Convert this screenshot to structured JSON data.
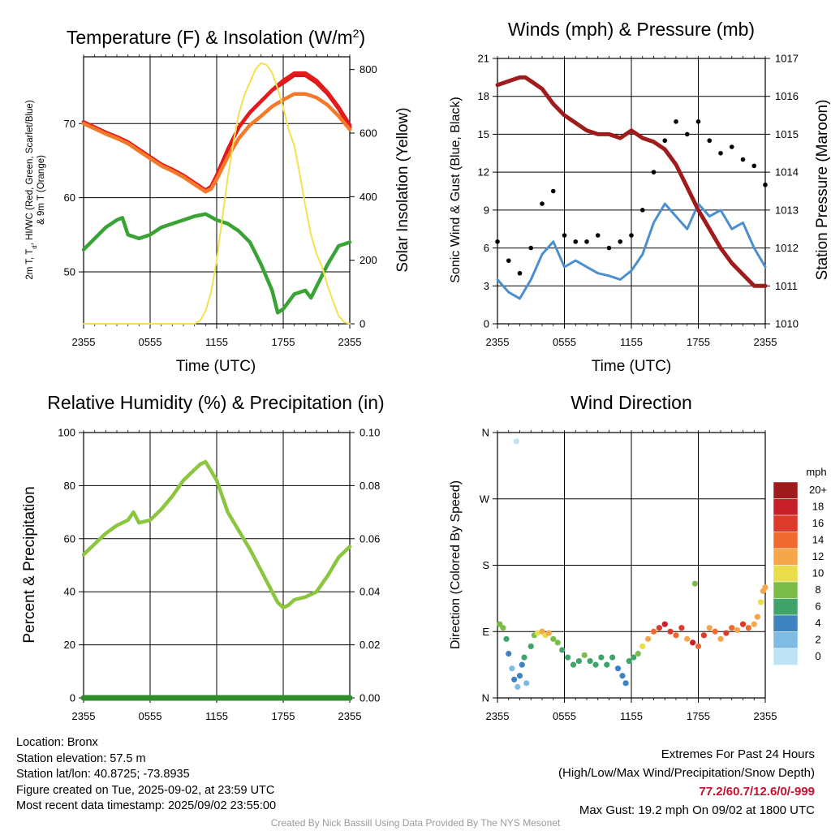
{
  "chart_data": [
    {
      "id": "temp",
      "type": "line",
      "title": "Temperature (F) & Insolation (W/m²)",
      "xlabel": "Time (UTC)",
      "ylabel": "2m T, Td, HI/WC (Red, Green, Scarlet/Blue) & 9m T (Orange)",
      "ylabel_right": "Solar Insolation (Yellow)",
      "x_ticks": [
        "2355",
        "0555",
        "1155",
        "1755",
        "2355"
      ],
      "y_ticks": [
        "50",
        "60",
        "70"
      ],
      "y_ticks_right": [
        "0",
        "200",
        "400",
        "600",
        "800"
      ],
      "ylim": [
        43,
        79
      ],
      "ylim_right": [
        0,
        840
      ],
      "xlim": [
        0,
        24
      ],
      "series": [
        {
          "name": "2m T",
          "color": "#d7191c",
          "axis": "left",
          "x": [
            0,
            1,
            2,
            3,
            4,
            5,
            6,
            7,
            8,
            9,
            10,
            11,
            11.5,
            12,
            13,
            14,
            15,
            16,
            17,
            18,
            19,
            20,
            21,
            22,
            23,
            24
          ],
          "y": [
            70.2,
            69.5,
            68.8,
            68.2,
            67.5,
            66.5,
            65.5,
            64.5,
            63.8,
            63.0,
            62.0,
            61.0,
            61.5,
            63.0,
            66.5,
            69.5,
            71.5,
            73.0,
            74.5,
            75.5,
            76.5,
            76.5,
            75.5,
            74.0,
            72.0,
            69.5
          ]
        },
        {
          "name": "HI/WC",
          "color": "#e41a1c",
          "axis": "left",
          "x": [
            0,
            1,
            2,
            3,
            4,
            5,
            6,
            7,
            8,
            9,
            10,
            11,
            11.5,
            12,
            13,
            14,
            15,
            16,
            17,
            18,
            19,
            20,
            21,
            22,
            23,
            24
          ],
          "y": [
            70.2,
            69.5,
            68.8,
            68.2,
            67.5,
            66.5,
            65.5,
            64.5,
            63.8,
            63.0,
            62.0,
            61.0,
            61.5,
            63.0,
            66.5,
            69.5,
            71.5,
            73.0,
            74.5,
            75.8,
            76.8,
            76.8,
            75.8,
            74.2,
            72.2,
            69.8
          ]
        },
        {
          "name": "9m T",
          "color": "#f47a2a",
          "axis": "left",
          "x": [
            0,
            1,
            2,
            3,
            4,
            5,
            6,
            7,
            8,
            9,
            10,
            11,
            11.5,
            12,
            13,
            14,
            15,
            16,
            17,
            18,
            19,
            20,
            21,
            22,
            23,
            24
          ],
          "y": [
            70.0,
            69.3,
            68.6,
            68.0,
            67.3,
            66.3,
            65.3,
            64.3,
            63.6,
            62.8,
            61.8,
            60.8,
            61.2,
            62.5,
            65.5,
            68.0,
            69.8,
            71.0,
            72.3,
            73.2,
            74.0,
            74.0,
            73.5,
            72.5,
            71.0,
            69.2
          ]
        },
        {
          "name": "Td",
          "color": "#3aa335",
          "axis": "left",
          "x": [
            0,
            1,
            2,
            3,
            3.5,
            4,
            5,
            6,
            7,
            8,
            9,
            10,
            11,
            12,
            13,
            14,
            15,
            16,
            17,
            17.5,
            18,
            18.5,
            19,
            20,
            20.5,
            21,
            22,
            23,
            24
          ],
          "y": [
            53.0,
            54.5,
            56.0,
            57.0,
            57.3,
            55.0,
            54.5,
            55.0,
            56.0,
            56.5,
            57.0,
            57.5,
            57.8,
            57.0,
            56.5,
            55.5,
            54.0,
            51.0,
            47.5,
            44.5,
            45.0,
            46.0,
            47.0,
            47.5,
            46.5,
            48.0,
            51.0,
            53.5,
            54.0
          ]
        },
        {
          "name": "Insolation",
          "color": "#f5e050",
          "axis": "right",
          "x": [
            0,
            10,
            10.5,
            11,
            11.5,
            12,
            12.5,
            13,
            13.5,
            14,
            14.5,
            15,
            15.5,
            16,
            16.5,
            17,
            17.5,
            18,
            18.5,
            19,
            19.5,
            20,
            20.5,
            21,
            21.5,
            22,
            22.5,
            23,
            23.5,
            24
          ],
          "y": [
            0,
            0,
            10,
            40,
            100,
            200,
            330,
            460,
            570,
            660,
            720,
            760,
            800,
            820,
            815,
            790,
            740,
            680,
            610,
            560,
            470,
            370,
            280,
            220,
            180,
            120,
            70,
            25,
            5,
            0
          ]
        }
      ]
    },
    {
      "id": "wind",
      "type": "line",
      "title": "Winds (mph) & Pressure (mb)",
      "xlabel": "Time (UTC)",
      "ylabel": "Sonic Wind & Gust (Blue, Black)",
      "ylabel_right": "Station Pressure (Maroon)",
      "x_ticks": [
        "2355",
        "0555",
        "1155",
        "1755",
        "2355"
      ],
      "y_ticks": [
        "0",
        "3",
        "6",
        "9",
        "12",
        "15",
        "18",
        "21"
      ],
      "y_ticks_right": [
        "1010",
        "1011",
        "1012",
        "1013",
        "1014",
        "1015",
        "1016",
        "1017"
      ],
      "ylim": [
        0,
        21
      ],
      "ylim_right": [
        1010,
        1017
      ],
      "xlim": [
        0,
        24
      ],
      "series": [
        {
          "name": "Sonic Wind",
          "color": "#4a90cf",
          "axis": "left",
          "x": [
            0,
            1,
            2,
            3,
            4,
            5,
            6,
            7,
            8,
            9,
            10,
            11,
            12,
            13,
            14,
            15,
            16,
            17,
            18,
            19,
            20,
            21,
            22,
            23,
            24
          ],
          "y": [
            3.5,
            2.5,
            2.0,
            3.5,
            5.5,
            6.5,
            4.5,
            5.0,
            4.5,
            4.0,
            3.8,
            3.5,
            4.2,
            5.5,
            8.0,
            9.5,
            8.5,
            7.5,
            9.5,
            8.5,
            9.0,
            7.5,
            8.0,
            6.0,
            4.5
          ]
        },
        {
          "name": "Gust",
          "color": "#000000",
          "axis": "left",
          "x": [
            0,
            1,
            2,
            3,
            4,
            5,
            6,
            7,
            8,
            9,
            10,
            11,
            12,
            13,
            14,
            15,
            16,
            17,
            18,
            19,
            20,
            21,
            22,
            23,
            24
          ],
          "y": [
            6.5,
            5.0,
            4.0,
            6.0,
            9.5,
            10.5,
            7.0,
            6.5,
            6.5,
            7.0,
            6.0,
            6.5,
            7.0,
            9.0,
            12.0,
            14.5,
            16.0,
            15.0,
            16.0,
            14.5,
            13.5,
            14.0,
            13.0,
            12.5,
            11.0
          ]
        },
        {
          "name": "Station Pressure",
          "color": "#a01c1c",
          "axis": "right",
          "x": [
            0,
            1,
            2,
            2.5,
            3,
            4,
            5,
            6,
            7,
            8,
            9,
            10,
            11,
            12,
            13,
            14,
            15,
            16,
            17,
            18,
            19,
            20,
            21,
            22,
            23,
            24
          ],
          "y": [
            1016.3,
            1016.4,
            1016.5,
            1016.5,
            1016.4,
            1016.2,
            1015.8,
            1015.5,
            1015.3,
            1015.1,
            1015.0,
            1015.0,
            1014.9,
            1015.1,
            1014.9,
            1014.8,
            1014.6,
            1014.2,
            1013.6,
            1013.0,
            1012.5,
            1012.0,
            1011.6,
            1011.3,
            1011.0,
            1011.0
          ]
        }
      ]
    },
    {
      "id": "rh",
      "type": "line",
      "title": "Relative Humidity (%) & Precipitation (in)",
      "xlabel": "",
      "ylabel": "Percent & Precipitation",
      "x_ticks": [
        "2355",
        "0555",
        "1155",
        "1755",
        "2355"
      ],
      "y_ticks": [
        "0",
        "20",
        "40",
        "60",
        "80",
        "100"
      ],
      "y_ticks_right": [
        "0.00",
        "0.02",
        "0.04",
        "0.06",
        "0.08",
        "0.10"
      ],
      "ylim": [
        0,
        100
      ],
      "ylim_right": [
        0,
        0.1
      ],
      "xlim": [
        0,
        24
      ],
      "series": [
        {
          "name": "Relative Humidity",
          "color": "#8cc63f",
          "axis": "left",
          "x": [
            0,
            1,
            2,
            3,
            4,
            4.5,
            5,
            6,
            7,
            8,
            9,
            10,
            10.5,
            11,
            12,
            13,
            14,
            15,
            16,
            17,
            17.5,
            18,
            18.5,
            19,
            20,
            21,
            22,
            23,
            24
          ],
          "y": [
            54,
            58,
            62,
            65,
            67,
            70,
            66,
            67,
            71,
            76,
            82,
            86,
            88,
            89,
            82,
            70,
            63,
            56,
            48,
            40,
            36,
            34,
            35,
            37,
            38,
            40,
            46,
            53,
            57
          ]
        },
        {
          "name": "Precipitation",
          "color": "#2e8b2e",
          "axis": "right",
          "x": [
            0,
            24
          ],
          "y": [
            0,
            0
          ]
        }
      ]
    },
    {
      "id": "wdir",
      "type": "scatter",
      "title": "Wind Direction",
      "xlabel": "",
      "ylabel": "Direction (Colored By Speed)",
      "x_ticks": [
        "2355",
        "0555",
        "1155",
        "1755",
        "2355"
      ],
      "y_ticks": [
        "N",
        "E",
        "S",
        "W",
        "N"
      ],
      "ylim": [
        0,
        360
      ],
      "xlim": [
        0,
        24
      ],
      "legend_title": "mph",
      "legend_labels": [
        "20+",
        "18",
        "16",
        "14",
        "12",
        "10",
        "8",
        "6",
        "4",
        "2",
        "0"
      ],
      "legend_colors": [
        "#9e1b1b",
        "#c8202a",
        "#de3a2c",
        "#ef6a2e",
        "#f6a64a",
        "#e9dd4c",
        "#7cbd4a",
        "#3fa36a",
        "#3f82c0",
        "#7fbbe3",
        "#bfe3f6"
      ],
      "points": [
        {
          "x": 0.2,
          "d": 100,
          "s": 4
        },
        {
          "x": 0.5,
          "d": 95,
          "s": 4
        },
        {
          "x": 0.8,
          "d": 80,
          "s": 3
        },
        {
          "x": 1.0,
          "d": 60,
          "s": 2
        },
        {
          "x": 1.3,
          "d": 40,
          "s": 1
        },
        {
          "x": 1.5,
          "d": 25,
          "s": 2
        },
        {
          "x": 1.8,
          "d": 15,
          "s": 1
        },
        {
          "x": 2.0,
          "d": 30,
          "s": 2
        },
        {
          "x": 2.2,
          "d": 45,
          "s": 2
        },
        {
          "x": 2.4,
          "d": 55,
          "s": 3
        },
        {
          "x": 2.6,
          "d": 20,
          "s": 1
        },
        {
          "x": 1.7,
          "d": 348,
          "s": 0
        },
        {
          "x": 3.0,
          "d": 70,
          "s": 3
        },
        {
          "x": 3.3,
          "d": 85,
          "s": 4
        },
        {
          "x": 3.6,
          "d": 88,
          "s": 5
        },
        {
          "x": 4.0,
          "d": 90,
          "s": 6
        },
        {
          "x": 4.3,
          "d": 85,
          "s": 5
        },
        {
          "x": 4.6,
          "d": 88,
          "s": 6
        },
        {
          "x": 5.0,
          "d": 80,
          "s": 4
        },
        {
          "x": 5.4,
          "d": 75,
          "s": 4
        },
        {
          "x": 5.8,
          "d": 65,
          "s": 3
        },
        {
          "x": 6.3,
          "d": 55,
          "s": 3
        },
        {
          "x": 6.8,
          "d": 45,
          "s": 3
        },
        {
          "x": 7.3,
          "d": 50,
          "s": 3
        },
        {
          "x": 7.8,
          "d": 58,
          "s": 4
        },
        {
          "x": 8.3,
          "d": 50,
          "s": 3
        },
        {
          "x": 8.8,
          "d": 45,
          "s": 3
        },
        {
          "x": 9.3,
          "d": 55,
          "s": 3
        },
        {
          "x": 9.8,
          "d": 45,
          "s": 3
        },
        {
          "x": 10.3,
          "d": 55,
          "s": 3
        },
        {
          "x": 10.8,
          "d": 40,
          "s": 2
        },
        {
          "x": 11.2,
          "d": 30,
          "s": 2
        },
        {
          "x": 11.5,
          "d": 20,
          "s": 2
        },
        {
          "x": 11.8,
          "d": 50,
          "s": 3
        },
        {
          "x": 12.2,
          "d": 55,
          "s": 3
        },
        {
          "x": 12.6,
          "d": 60,
          "s": 4
        },
        {
          "x": 13.0,
          "d": 70,
          "s": 5
        },
        {
          "x": 13.5,
          "d": 80,
          "s": 6
        },
        {
          "x": 14.0,
          "d": 90,
          "s": 7
        },
        {
          "x": 14.5,
          "d": 95,
          "s": 8
        },
        {
          "x": 15.0,
          "d": 100,
          "s": 9
        },
        {
          "x": 15.5,
          "d": 90,
          "s": 8
        },
        {
          "x": 16.0,
          "d": 85,
          "s": 7
        },
        {
          "x": 16.5,
          "d": 95,
          "s": 8
        },
        {
          "x": 17.0,
          "d": 80,
          "s": 6
        },
        {
          "x": 17.5,
          "d": 75,
          "s": 9
        },
        {
          "x": 18.0,
          "d": 70,
          "s": 7
        },
        {
          "x": 18.5,
          "d": 85,
          "s": 8
        },
        {
          "x": 19.0,
          "d": 95,
          "s": 6
        },
        {
          "x": 19.5,
          "d": 90,
          "s": 7
        },
        {
          "x": 20.0,
          "d": 80,
          "s": 6
        },
        {
          "x": 20.5,
          "d": 88,
          "s": 8
        },
        {
          "x": 21.0,
          "d": 95,
          "s": 7
        },
        {
          "x": 21.5,
          "d": 92,
          "s": 6
        },
        {
          "x": 22.0,
          "d": 100,
          "s": 8
        },
        {
          "x": 22.5,
          "d": 95,
          "s": 7
        },
        {
          "x": 23.0,
          "d": 100,
          "s": 6
        },
        {
          "x": 23.3,
          "d": 110,
          "s": 6
        },
        {
          "x": 23.6,
          "d": 130,
          "s": 5
        },
        {
          "x": 23.8,
          "d": 145,
          "s": 6
        },
        {
          "x": 24.0,
          "d": 150,
          "s": 6
        },
        {
          "x": 17.7,
          "d": 155,
          "s": 4
        }
      ]
    }
  ],
  "footer": {
    "location": "Location: Bronx",
    "elevation": "Station elevation: 57.5 m",
    "latlon": "Station lat/lon: 40.8725; -73.8935",
    "created": "Figure created on Tue, 2025-09-02, at 23:59 UTC",
    "recent": "Most recent data timestamp: 2025/09/02 23:55:00",
    "extremes_title": "Extremes For Past 24 Hours",
    "extremes_desc": "(High/Low/Max Wind/Precipitation/Snow Depth)",
    "extremes_values": "77.2/60.7/12.6/0/-999",
    "max_gust": "Max Gust: 19.2 mph On 09/02 at 1800 UTC",
    "credit": "Created By Nick Bassill Using Data Provided By The NYS Mesonet"
  }
}
